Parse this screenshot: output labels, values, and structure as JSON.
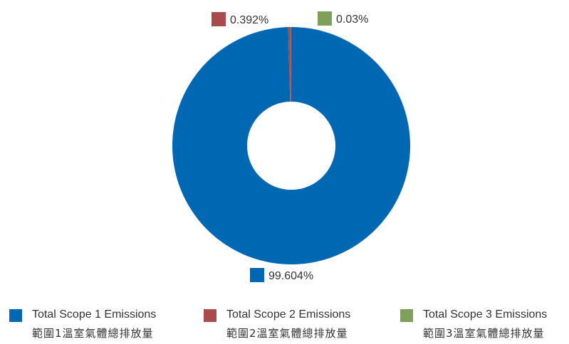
{
  "chart_data": {
    "type": "pie",
    "categories": [
      "Total Scope 1 Emissions",
      "Total Scope 2 Emissions",
      "Total Scope 3 Emissions"
    ],
    "categories_zh": [
      "範圍1溫室氣體總排放量",
      "範圍2溫室氣體總排放量",
      "範圍3溫室氣體總排放量"
    ],
    "values": [
      99.604,
      0.392,
      0.03
    ],
    "value_labels": [
      "99.604%",
      "0.392%",
      "0.03%"
    ],
    "colors": [
      "#0068B3",
      "#A94A4C",
      "#7FA05A"
    ],
    "donut": true,
    "legend_position": "bottom"
  }
}
